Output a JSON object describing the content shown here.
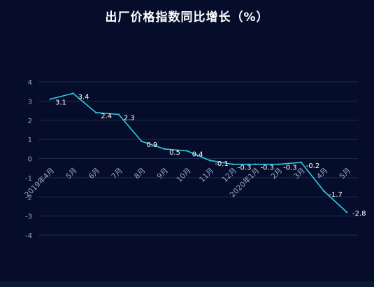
{
  "chart_data": {
    "type": "line",
    "title": "出厂价格指数同比增长（%）",
    "categories": [
      "2019年4月",
      "5月",
      "6月",
      "7月",
      "8月",
      "9月",
      "10月",
      "11月",
      "12月",
      "2020年1月",
      "2月",
      "3月",
      "4月",
      "5月"
    ],
    "series": [
      {
        "values": [
          3.1,
          3.4,
          2.4,
          2.3,
          0.9,
          0.5,
          0.4,
          -0.1,
          -0.3,
          -0.3,
          -0.3,
          -0.2,
          -1.7,
          -2.8
        ],
        "labels": [
          "3.1",
          "3.4",
          "2.4",
          "2.3",
          "0.9",
          "0.5",
          "0.4",
          "-0.1",
          "-0.3",
          "-0.3",
          "-0.3",
          "-0.2",
          "-1.7",
          "-2.8"
        ]
      }
    ],
    "ylim": [
      -4,
      4
    ],
    "yticks": [
      "4",
      "3",
      "2",
      "1",
      "0",
      "-1",
      "-2",
      "-3",
      "-4"
    ],
    "ytick_values": [
      4,
      3,
      2,
      1,
      0,
      -1,
      -2,
      -3,
      -4
    ],
    "grid": true,
    "colors": {
      "line": "#34c9e0",
      "grid": "#1e2b4e",
      "text": "#9aa7c8",
      "label": "#ffffff",
      "background": "#050d2b"
    }
  }
}
